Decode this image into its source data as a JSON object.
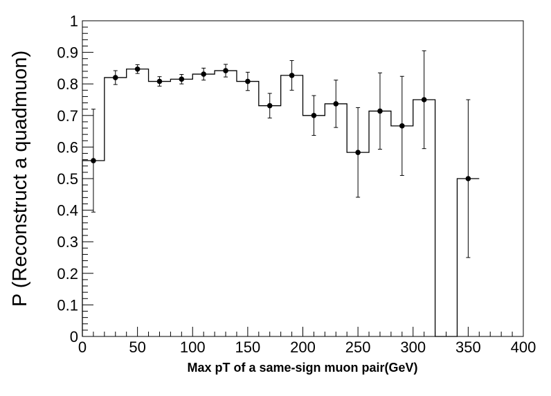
{
  "chart_data": {
    "type": "scatter",
    "title": "",
    "xlabel": "Max pT of a same-sign muon pair(GeV)",
    "ylabel": "P (Reconstruct a quadmuon)",
    "xlim": [
      0,
      400
    ],
    "ylim": [
      0,
      1
    ],
    "x_ticks": [
      "0",
      "50",
      "100",
      "150",
      "200",
      "250",
      "300",
      "350",
      "400"
    ],
    "y_ticks": [
      "0",
      "0.1",
      "0.2",
      "0.3",
      "0.4",
      "0.5",
      "0.6",
      "0.7",
      "0.8",
      "0.9",
      "1"
    ],
    "grid": false,
    "legend": "none",
    "colors": {
      "marker": "#000000",
      "histogram": "#000000",
      "frame": "#000000"
    },
    "bin_width": 20,
    "series": [
      {
        "x": [
          10,
          30,
          50,
          70,
          90,
          110,
          130,
          150,
          170,
          190,
          210,
          230,
          250,
          270,
          290,
          310,
          330,
          350
        ],
        "y": [
          0.557,
          0.82,
          0.847,
          0.808,
          0.815,
          0.831,
          0.842,
          0.808,
          0.731,
          0.827,
          0.7,
          0.737,
          0.583,
          0.714,
          0.667,
          0.75,
          0,
          0.5
        ],
        "y_err": [
          0.163,
          0.022,
          0.014,
          0.015,
          0.015,
          0.019,
          0.02,
          0.029,
          0.039,
          0.047,
          0.063,
          0.075,
          0.142,
          0.121,
          0.157,
          0.155,
          0,
          0.25
        ],
        "has_point": [
          true,
          true,
          true,
          true,
          true,
          true,
          true,
          true,
          true,
          true,
          true,
          true,
          true,
          true,
          true,
          true,
          false,
          true
        ]
      }
    ]
  }
}
